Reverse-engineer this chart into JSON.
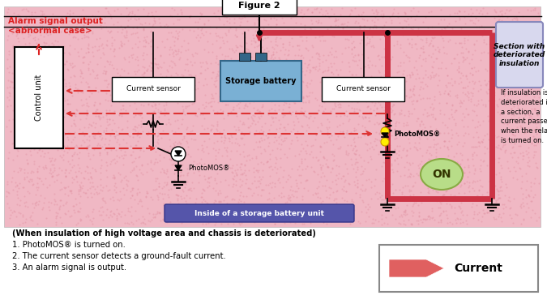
{
  "fig_title": "Figure 2",
  "alarm_text_line1": "Alarm signal output",
  "alarm_text_line2": "<abnormal case>",
  "alarm_color": "#dd2222",
  "control_unit_label": "Control unit",
  "storage_battery_label": "Storage battery",
  "current_sensor_label1": "Current sensor",
  "current_sensor_label2": "Current sensor",
  "inside_label": "Inside of a storage battery unit",
  "photomos_label1": "PhotoMOS®",
  "photomos_label2": "PhotoMOS®",
  "section_label": "Section with\ndeteriorated\ninsulation",
  "on_label": "ON",
  "if_insulation_text": "If insulation is\ndeteriorated in\na section, a\ncurrent passes\nwhen the relay\nis turned on.",
  "bottom_text_title": "(When insulation of high voltage area and chassis is deteriorated)",
  "bottom_text1": "1. PhotoMOS® is turned on.",
  "bottom_text2": "2. The current sensor detects a ground-fault current.",
  "bottom_text3": "3. An alarm signal is output.",
  "current_legend_label": "Current",
  "pink_bg": "#f0b8c4",
  "red_thick": "#cc3344",
  "arrow_dash_color": "#dd3333",
  "storage_battery_color": "#7ab0d4",
  "section_box_fill": "#d8d8ee",
  "section_box_edge": "#8888bb",
  "inside_box_fill": "#5555aa",
  "on_fill": "#b8dd88",
  "on_edge": "#88aa44",
  "legend_arrow_color": "#e06060"
}
